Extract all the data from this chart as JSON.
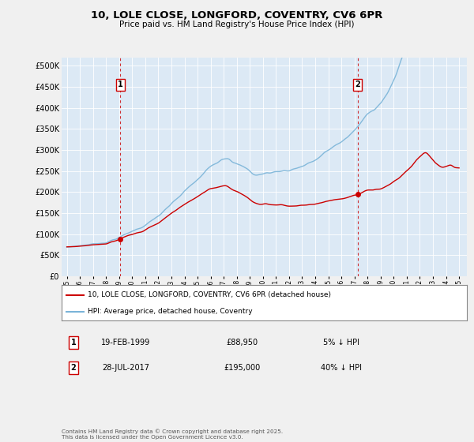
{
  "title": "10, LOLE CLOSE, LONGFORD, COVENTRY, CV6 6PR",
  "subtitle": "Price paid vs. HM Land Registry's House Price Index (HPI)",
  "ylim": [
    0,
    520000
  ],
  "yticks": [
    0,
    50000,
    100000,
    150000,
    200000,
    250000,
    300000,
    350000,
    400000,
    450000,
    500000
  ],
  "ytick_labels": [
    "£0",
    "£50K",
    "£100K",
    "£150K",
    "£200K",
    "£250K",
    "£300K",
    "£350K",
    "£400K",
    "£450K",
    "£500K"
  ],
  "hpi_color": "#7ab4d8",
  "price_color": "#cc0000",
  "vline_color": "#cc0000",
  "idx1": 49,
  "idx2": 267,
  "marker1_date_str": "19-FEB-1999",
  "marker1_price": 88950,
  "marker1_note": "5% ↓ HPI",
  "marker2_date_str": "28-JUL-2017",
  "marker2_price": 195000,
  "marker2_note": "40% ↓ HPI",
  "legend_label_price": "10, LOLE CLOSE, LONGFORD, COVENTRY, CV6 6PR (detached house)",
  "legend_label_hpi": "HPI: Average price, detached house, Coventry",
  "footer": "Contains HM Land Registry data © Crown copyright and database right 2025.\nThis data is licensed under the Open Government Licence v3.0.",
  "background_color": "#f0f0f0",
  "plot_background": "#dce9f5",
  "grid_color": "#ffffff"
}
